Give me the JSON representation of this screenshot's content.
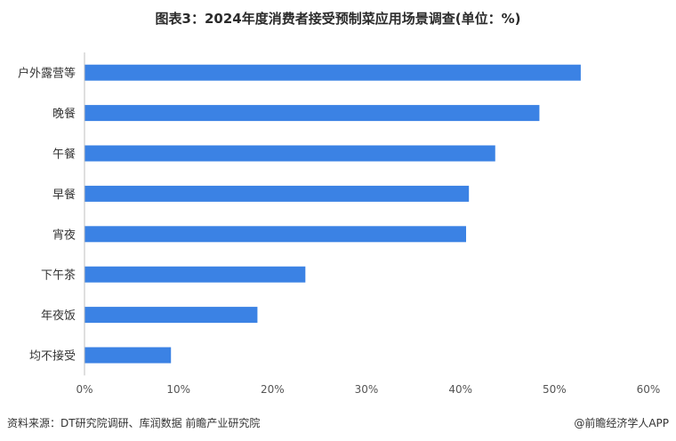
{
  "title": "图表3：2024年度消费者接受预制菜应用场景调查(单位：%)",
  "chart_data": {
    "type": "bar",
    "orientation": "horizontal",
    "categories": [
      "户外露营等",
      "晚餐",
      "午餐",
      "早餐",
      "宵夜",
      "下午茶",
      "年夜饭",
      "均不接受"
    ],
    "values": [
      52.8,
      48.4,
      43.7,
      40.9,
      40.6,
      23.5,
      18.4,
      9.2
    ],
    "xlim": [
      0,
      60
    ],
    "x_ticks": [
      "0%",
      "10%",
      "20%",
      "30%",
      "40%",
      "50%",
      "60%"
    ],
    "bar_color": "#3b82e4",
    "grid": false
  },
  "footer": {
    "source": "资料来源：DT研究院调研、库润数据 前瞻产业研究院",
    "brand": "@前瞻经济学人APP"
  }
}
